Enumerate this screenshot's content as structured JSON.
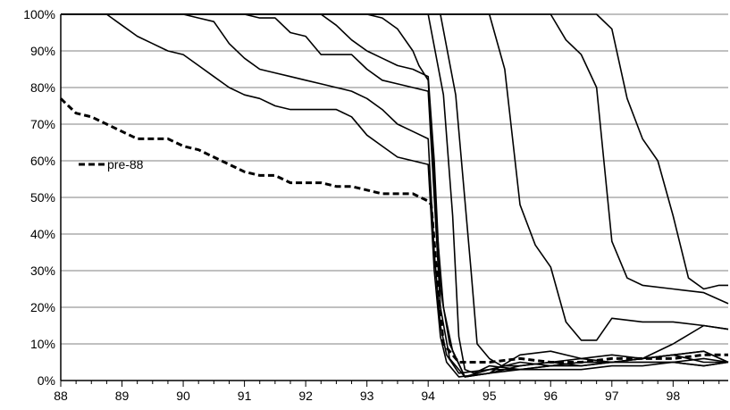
{
  "chart_data": {
    "type": "line",
    "title": "",
    "xlabel": "",
    "ylabel": "",
    "x_ticks": [
      "88",
      "89",
      "90",
      "91",
      "92",
      "93",
      "94",
      "95",
      "96",
      "97",
      "98"
    ],
    "y_ticks": [
      "0%",
      "10%",
      "20%",
      "30%",
      "40%",
      "50%",
      "60%",
      "70%",
      "80%",
      "90%",
      "100%"
    ],
    "xlim": [
      88,
      98.9
    ],
    "ylim": [
      0,
      100
    ],
    "grid": "horizontal",
    "legend_label": "pre-88",
    "colors": {
      "line": "#000000",
      "grid": "#808080",
      "axis": "#000000"
    },
    "series": [
      {
        "name": "pre-88",
        "style": "dashed",
        "x": [
          88.0,
          88.25,
          88.5,
          88.75,
          89.0,
          89.25,
          89.5,
          89.75,
          90.0,
          90.25,
          90.5,
          90.75,
          91.0,
          91.25,
          91.5,
          91.75,
          92.0,
          92.25,
          92.5,
          92.75,
          93.0,
          93.25,
          93.5,
          93.75,
          94.0,
          94.05,
          94.1,
          94.15,
          94.25,
          94.5,
          94.75,
          95.0,
          95.5,
          96.0,
          96.5,
          97.0,
          97.5,
          98.0,
          98.5,
          98.9
        ],
        "y": [
          77,
          73,
          72,
          70,
          68,
          66,
          66,
          66,
          64,
          63,
          61,
          59,
          57,
          56,
          56,
          54,
          54,
          54,
          53,
          53,
          52,
          51,
          51,
          51,
          49,
          48,
          38,
          27,
          10,
          5,
          5,
          5,
          6,
          5,
          5,
          6,
          6,
          6,
          7,
          7
        ]
      },
      {
        "style": "solid",
        "x": [
          88.0,
          88.5,
          88.75,
          89.0,
          89.25,
          89.5,
          89.75,
          90.0,
          90.25,
          90.5,
          90.75,
          91.0,
          91.25,
          91.5,
          91.75,
          92.0,
          92.25,
          92.5,
          92.75,
          93.0,
          93.25,
          93.5,
          93.75,
          94.0,
          94.1,
          94.2,
          94.3,
          94.5,
          95.0,
          95.5,
          96.0,
          96.5,
          97.0,
          97.5,
          98.0,
          98.5,
          98.9
        ],
        "y": [
          100,
          100,
          100,
          97,
          94,
          92,
          90,
          89,
          86,
          83,
          80,
          78,
          77,
          75,
          74,
          74,
          74,
          74,
          72,
          67,
          64,
          61,
          60,
          59,
          30,
          12,
          5,
          1,
          2,
          3,
          3,
          3,
          4,
          4,
          5,
          4,
          5
        ]
      },
      {
        "style": "solid",
        "x": [
          88.0,
          90.0,
          90.25,
          90.5,
          90.75,
          91.0,
          91.25,
          91.5,
          91.75,
          92.0,
          92.25,
          92.5,
          92.75,
          93.0,
          93.25,
          93.5,
          93.75,
          94.0,
          94.1,
          94.2,
          94.3,
          94.5,
          95.0,
          95.5,
          96.0,
          96.5,
          97.0,
          97.5,
          98.0,
          98.5,
          98.9
        ],
        "y": [
          100,
          100,
          99,
          98,
          92,
          88,
          85,
          84,
          83,
          82,
          81,
          80,
          79,
          77,
          74,
          70,
          68,
          66,
          35,
          15,
          7,
          2,
          3,
          5,
          4,
          5,
          5,
          5,
          5,
          4,
          5
        ]
      },
      {
        "style": "solid",
        "x": [
          88.0,
          91.0,
          91.25,
          91.5,
          91.75,
          92.0,
          92.25,
          92.5,
          92.75,
          93.0,
          93.25,
          93.5,
          93.75,
          94.0,
          94.1,
          94.2,
          94.35,
          94.6,
          95.0,
          95.5,
          96.0,
          96.5,
          97.0,
          97.5,
          98.0,
          98.5,
          98.9
        ],
        "y": [
          100,
          100,
          99,
          99,
          95,
          94,
          89,
          89,
          89,
          85,
          82,
          81,
          80,
          79,
          50,
          20,
          6,
          1,
          2,
          4,
          5,
          6,
          5,
          6,
          7,
          5,
          5
        ]
      },
      {
        "style": "solid",
        "x": [
          88.0,
          92.25,
          92.5,
          92.75,
          93.0,
          93.25,
          93.5,
          93.75,
          94.0,
          94.1,
          94.2,
          94.35,
          94.6,
          95.0,
          95.5,
          96.0,
          96.5,
          97.0,
          97.5,
          98.0,
          98.5,
          98.9
        ],
        "y": [
          100,
          100,
          97,
          93,
          90,
          88,
          86,
          85,
          83,
          60,
          25,
          10,
          1,
          2,
          7,
          8,
          6,
          7,
          6,
          10,
          15,
          14
        ]
      },
      {
        "style": "solid",
        "x": [
          88.0,
          93.0,
          93.25,
          93.5,
          93.75,
          93.85,
          94.0,
          94.15,
          94.25,
          94.4,
          94.6,
          95.0,
          95.5,
          96.0,
          96.5,
          97.0,
          97.5,
          98.0,
          98.5,
          98.9
        ],
        "y": [
          100,
          100,
          99,
          96,
          90,
          86,
          82,
          40,
          20,
          8,
          1,
          3,
          3,
          4,
          5,
          5,
          6,
          7,
          8,
          5
        ]
      },
      {
        "style": "solid",
        "x": [
          88.0,
          94.0,
          94.25,
          94.4,
          94.5,
          94.6,
          94.75,
          95.0,
          95.5,
          96.0,
          96.5,
          97.0,
          97.5,
          98.0,
          98.5,
          98.9
        ],
        "y": [
          100,
          100,
          78,
          45,
          12,
          3,
          2,
          4,
          3,
          4,
          4,
          5,
          5,
          5,
          6,
          5
        ]
      },
      {
        "style": "solid",
        "x": [
          88.0,
          94.2,
          94.45,
          94.7,
          94.8,
          95.0,
          95.2,
          95.5,
          96.0,
          96.5,
          97.0,
          97.5,
          98.0,
          98.5,
          98.9
        ],
        "y": [
          100,
          100,
          78,
          30,
          10,
          6,
          4,
          4,
          5,
          4,
          5,
          6,
          7,
          8,
          5
        ]
      },
      {
        "style": "solid",
        "x": [
          88.0,
          95.0,
          95.25,
          95.5,
          95.75,
          96.0,
          96.25,
          96.5,
          96.75,
          97.0,
          97.5,
          98.0,
          98.5,
          98.9
        ],
        "y": [
          100,
          100,
          85,
          48,
          37,
          31,
          16,
          11,
          11,
          17,
          16,
          16,
          15,
          14
        ]
      },
      {
        "style": "solid",
        "x": [
          88.0,
          95.75,
          96.0,
          96.25,
          96.5,
          96.75,
          97.0,
          97.25,
          97.5,
          98.0,
          98.5,
          98.9
        ],
        "y": [
          100,
          100,
          100,
          93,
          89,
          80,
          38,
          28,
          26,
          25,
          24,
          21
        ]
      },
      {
        "style": "solid",
        "x": [
          88.0,
          96.75,
          97.0,
          97.25,
          97.5,
          97.75,
          98.0,
          98.25,
          98.5,
          98.75,
          98.9
        ],
        "y": [
          100,
          100,
          96,
          77,
          66,
          60,
          45,
          28,
          25,
          26,
          26
        ]
      }
    ]
  }
}
